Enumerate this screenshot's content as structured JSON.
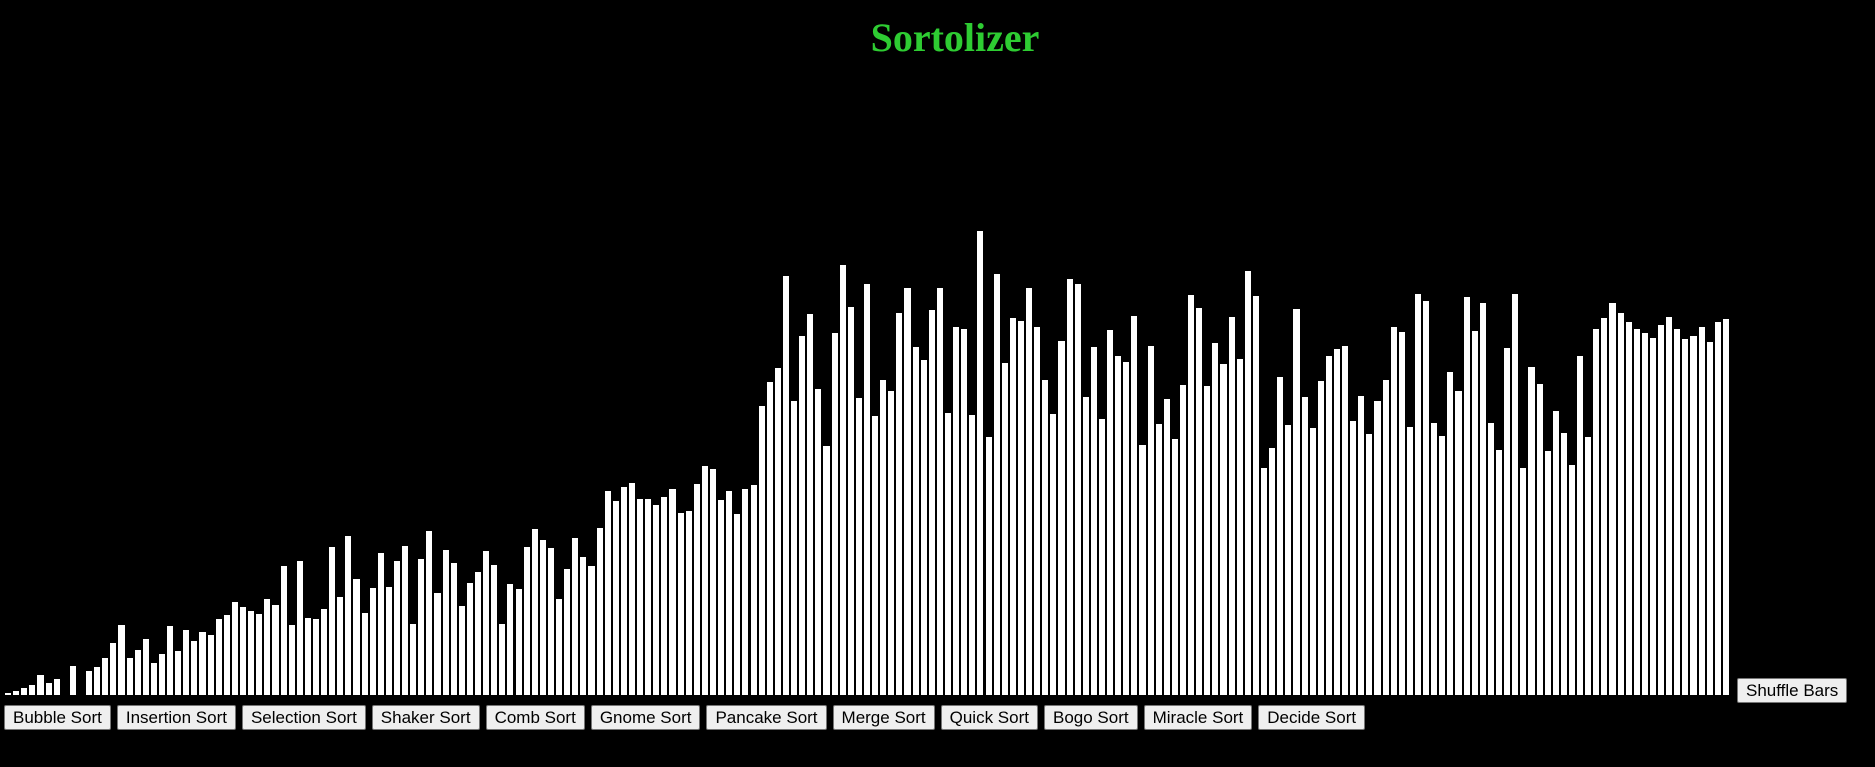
{
  "app": {
    "title": "Sortolizer",
    "title_color": "#2ecc32",
    "background": "#000000"
  },
  "bars": {
    "bar_color": "#ffffff",
    "compare_color": "#ff0000",
    "swap_color": "#0000ff",
    "max_value": 100,
    "values": [
      0.6,
      1.0,
      1.4,
      2.0,
      3.6,
      2.3,
      2.9,
      0.0,
      5.1,
      0.0,
      4.2,
      4.8,
      6.4,
      8.8,
      11.7,
      6.4,
      7.6,
      9.4,
      5.5,
      7.0,
      11.5,
      7.5,
      10.9,
      9.1,
      10.5,
      10.0,
      12.6,
      13.3,
      15.5,
      14.6,
      14.0,
      13.5,
      15.9,
      15.0,
      21.2,
      11.7,
      22.1,
      12.9,
      12.7,
      14.3,
      24.3,
      16.3,
      26.2,
      19.1,
      13.6,
      17.7,
      23.3,
      17.8,
      22.1,
      24.5,
      11.8,
      22.4,
      27.0,
      16.9,
      23.9,
      21.8,
      14.8,
      18.5,
      20.3,
      23.7,
      21.4,
      11.9,
      18.3,
      17.5,
      24.4,
      27.2,
      25.5,
      24.2,
      15.9,
      20.8,
      25.8,
      22.7,
      21.3,
      27.5,
      33.4,
      31.8,
      34.1,
      34.7,
      32.2,
      32.1,
      31.1,
      32.4,
      33.7,
      29.9,
      30.2,
      34.6,
      37.5,
      37.0,
      31.9,
      33.5,
      29.7,
      33.8,
      34.4,
      47.3,
      51.1,
      53.4,
      68.4,
      48.1,
      58.6,
      62.2,
      50.0,
      40.8,
      59.1,
      70.1,
      63.3,
      48.5,
      67.0,
      45.6,
      51.5,
      49.7,
      62.4,
      66.4,
      56.8,
      54.7,
      62.9,
      66.4,
      46.1,
      60.1,
      59.8,
      45.8,
      75.6,
      42.2,
      68.6,
      54.2,
      61.5,
      61.1,
      66.4,
      60.0,
      51.4,
      46.0,
      57.8,
      67.8,
      67.0,
      48.7,
      56.8,
      45.1,
      59.5,
      55.4,
      54.4,
      61.8,
      40.9,
      57.0,
      44.3,
      48.3,
      41.9,
      50.7,
      65.3,
      63.1,
      50.5,
      57.4,
      54.1,
      61.7,
      54.8,
      69.2,
      65.1,
      37.2,
      40.4,
      52.0,
      44.2,
      63.0,
      48.7,
      43.6,
      51.3,
      55.3,
      56.5,
      57.0,
      44.8,
      48.8,
      42.7,
      48.1,
      51.4,
      60.1,
      59.2,
      43.9,
      65.4,
      64.3,
      44.4,
      42.3,
      52.7,
      49.6,
      64.9,
      59.4,
      63.9,
      44.5,
      40.1,
      56.7,
      65.5,
      37.2,
      53.6,
      50.8,
      39.9,
      46.4,
      42.8,
      37.6,
      55.4,
      42.2,
      59.7,
      61.5,
      64.0,
      62.3,
      60.8,
      59.8,
      59.1,
      58.3,
      60.4,
      61.7,
      59.8,
      58.1,
      58.6,
      60.0,
      57.6,
      60.9,
      61.4
    ],
    "compare_index": 7,
    "swap_index": 9
  },
  "toolbar": {
    "buttons": [
      "Bubble Sort",
      "Insertion Sort",
      "Selection Sort",
      "Shaker Sort",
      "Comb Sort",
      "Gnome Sort",
      "Pancake Sort",
      "Merge Sort",
      "Quick Sort",
      "Bogo Sort",
      "Miracle Sort",
      "Decide Sort"
    ],
    "shuffle_label": "Shuffle Bars"
  }
}
